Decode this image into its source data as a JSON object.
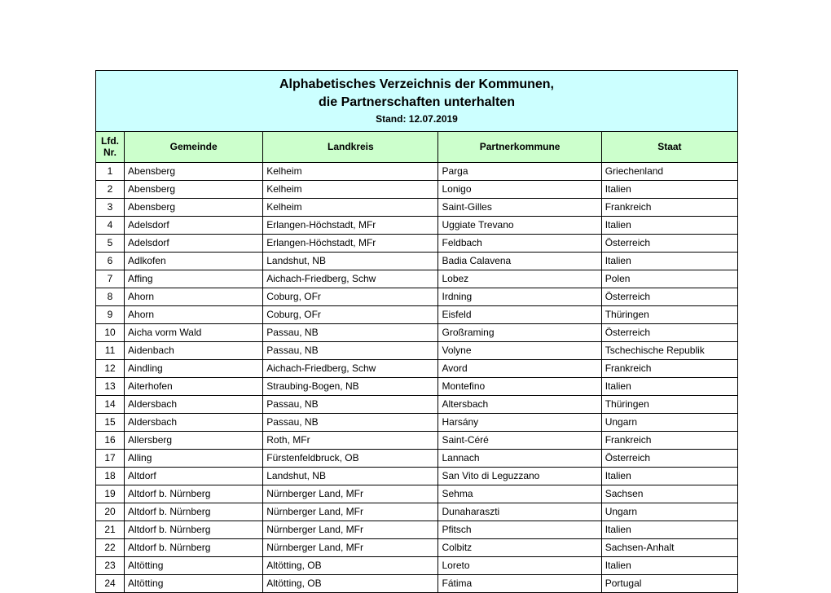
{
  "title": {
    "line1": "Alphabetisches Verzeichnis der Kommunen,",
    "line2": "die Partnerschaften unterhalten",
    "stand": "Stand: 12.07.2019"
  },
  "columns": {
    "nr": "Lfd. Nr.",
    "gemeinde": "Gemeinde",
    "landkreis": "Landkreis",
    "partnerkommune": "Partnerkommune",
    "staat": "Staat"
  },
  "colors": {
    "title_bg": "#ccffff",
    "header_bg": "#ccffcc",
    "border": "#000000",
    "page_bg": "#ffffff"
  },
  "rows": [
    {
      "nr": "1",
      "gemeinde": "Abensberg",
      "landkreis": "Kelheim",
      "partnerkommune": "Parga",
      "staat": "Griechenland"
    },
    {
      "nr": "2",
      "gemeinde": "Abensberg",
      "landkreis": "Kelheim",
      "partnerkommune": "Lonigo",
      "staat": "Italien"
    },
    {
      "nr": "3",
      "gemeinde": "Abensberg",
      "landkreis": "Kelheim",
      "partnerkommune": "Saint-Gilles",
      "staat": "Frankreich"
    },
    {
      "nr": "4",
      "gemeinde": "Adelsdorf",
      "landkreis": "Erlangen-Höchstadt, MFr",
      "partnerkommune": "Uggiate Trevano",
      "staat": "Italien"
    },
    {
      "nr": "5",
      "gemeinde": "Adelsdorf",
      "landkreis": "Erlangen-Höchstadt, MFr",
      "partnerkommune": "Feldbach",
      "staat": "Österreich"
    },
    {
      "nr": "6",
      "gemeinde": "Adlkofen",
      "landkreis": "Landshut, NB",
      "partnerkommune": "Badia Calavena",
      "staat": "Italien"
    },
    {
      "nr": "7",
      "gemeinde": "Affing",
      "landkreis": "Aichach-Friedberg, Schw",
      "partnerkommune": "Lobez",
      "staat": "Polen"
    },
    {
      "nr": "8",
      "gemeinde": "Ahorn",
      "landkreis": "Coburg, OFr",
      "partnerkommune": "Irdning",
      "staat": "Österreich"
    },
    {
      "nr": "9",
      "gemeinde": "Ahorn",
      "landkreis": "Coburg, OFr",
      "partnerkommune": "Eisfeld",
      "staat": "Thüringen"
    },
    {
      "nr": "10",
      "gemeinde": "Aicha vorm Wald",
      "landkreis": "Passau, NB",
      "partnerkommune": "Großraming",
      "staat": "Österreich"
    },
    {
      "nr": "11",
      "gemeinde": "Aidenbach",
      "landkreis": "Passau, NB",
      "partnerkommune": "Volyne",
      "staat": "Tschechische Republik"
    },
    {
      "nr": "12",
      "gemeinde": "Aindling",
      "landkreis": "Aichach-Friedberg, Schw",
      "partnerkommune": "Avord",
      "staat": "Frankreich"
    },
    {
      "nr": "13",
      "gemeinde": "Aiterhofen",
      "landkreis": "Straubing-Bogen, NB",
      "partnerkommune": "Montefino",
      "staat": "Italien"
    },
    {
      "nr": "14",
      "gemeinde": "Aldersbach",
      "landkreis": "Passau, NB",
      "partnerkommune": "Altersbach",
      "staat": "Thüringen"
    },
    {
      "nr": "15",
      "gemeinde": "Aldersbach",
      "landkreis": "Passau, NB",
      "partnerkommune": "Harsány",
      "staat": "Ungarn"
    },
    {
      "nr": "16",
      "gemeinde": "Allersberg",
      "landkreis": "Roth, MFr",
      "partnerkommune": "Saint-Céré",
      "staat": "Frankreich"
    },
    {
      "nr": "17",
      "gemeinde": "Alling",
      "landkreis": "Fürstenfeldbruck, OB",
      "partnerkommune": "Lannach",
      "staat": "Österreich"
    },
    {
      "nr": "18",
      "gemeinde": "Altdorf",
      "landkreis": "Landshut, NB",
      "partnerkommune": "San Vito di Leguzzano",
      "staat": "Italien"
    },
    {
      "nr": "19",
      "gemeinde": "Altdorf b. Nürnberg",
      "landkreis": "Nürnberger Land, MFr",
      "partnerkommune": "Sehma",
      "staat": "Sachsen"
    },
    {
      "nr": "20",
      "gemeinde": "Altdorf b. Nürnberg",
      "landkreis": "Nürnberger Land, MFr",
      "partnerkommune": "Dunaharaszti",
      "staat": "Ungarn"
    },
    {
      "nr": "21",
      "gemeinde": "Altdorf b. Nürnberg",
      "landkreis": "Nürnberger Land, MFr",
      "partnerkommune": "Pfitsch",
      "staat": "Italien"
    },
    {
      "nr": "22",
      "gemeinde": "Altdorf b. Nürnberg",
      "landkreis": "Nürnberger Land, MFr",
      "partnerkommune": "Colbitz",
      "staat": "Sachsen-Anhalt"
    },
    {
      "nr": "23",
      "gemeinde": "Altötting",
      "landkreis": "Altötting, OB",
      "partnerkommune": "Loreto",
      "staat": "Italien"
    },
    {
      "nr": "24",
      "gemeinde": "Altötting",
      "landkreis": "Altötting, OB",
      "partnerkommune": "Fátima",
      "staat": "Portugal"
    }
  ]
}
